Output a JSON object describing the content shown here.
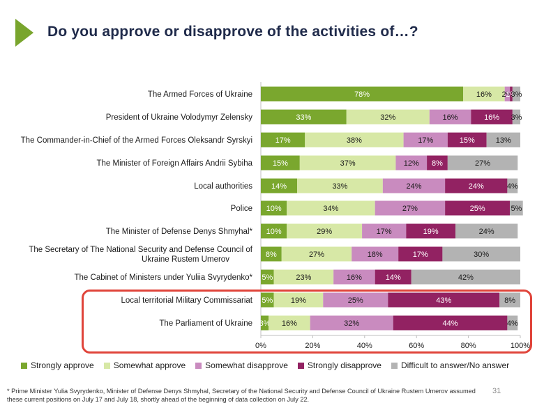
{
  "slide": {
    "title": "Do you approve or disapprove of the activities of…?",
    "page_number": "31",
    "footnote": "* Prime Minister Yulia Svyrydenko, Minister of Defense Denys Shmyhal, Secretary of the National Security and Defense Council of Ukraine Rustem Umerov assumed these current positions on July 17 and July 18, shortly ahead of the beginning of data collection on July 22.",
    "accent_color": "#79a52d",
    "highlight_color": "#e0443a"
  },
  "chart_data": {
    "type": "bar",
    "orientation": "horizontal",
    "stacked": true,
    "title": "Do you approve or disapprove of the activities of…?",
    "xlim": [
      0,
      100
    ],
    "xticks": [
      "0%",
      "20%",
      "40%",
      "60%",
      "80%",
      "100%"
    ],
    "legend_position": "bottom",
    "categories": [
      "The Armed Forces of Ukraine",
      "President of Ukraine Volodymyr Zelensky",
      "The Commander-in-Chief of the Armed Forces Oleksandr Syrskyi",
      "The Minister of Foreign Affairs Andrii Sybiha",
      "Local authorities",
      "Police",
      "The Minister of Defense Denys Shmyhal*",
      "The Secretary of The National Security and Defense Council of Ukraine Rustem Umerov",
      "The Cabinet of Ministers under Yuliia Svyrydenko*",
      "Local territorial Military Commissariat",
      "The Parliament of Ukraine"
    ],
    "series": [
      {
        "name": "Strongly approve",
        "color": "#7aa72e",
        "values": [
          78,
          33,
          17,
          15,
          14,
          10,
          10,
          8,
          5,
          5,
          3
        ]
      },
      {
        "name": "Somewhat approve",
        "color": "#d7e8a6",
        "values": [
          16,
          32,
          38,
          37,
          33,
          34,
          29,
          27,
          23,
          19,
          16
        ]
      },
      {
        "name": "Somewhat disapprove",
        "color": "#c98bbf",
        "values": [
          2,
          16,
          17,
          12,
          24,
          27,
          17,
          18,
          16,
          25,
          32
        ]
      },
      {
        "name": "Strongly disapprove",
        "color": "#922262",
        "values": [
          1,
          16,
          15,
          8,
          24,
          25,
          19,
          17,
          14,
          43,
          44
        ]
      },
      {
        "name": "Difficult to answer/No answer",
        "color": "#b3b3b3",
        "values": [
          3,
          3,
          13,
          27,
          4,
          5,
          24,
          30,
          42,
          8,
          4
        ]
      }
    ],
    "highlighted_categories": [
      "Local territorial Military Commissariat",
      "The Parliament of Ukraine"
    ]
  }
}
